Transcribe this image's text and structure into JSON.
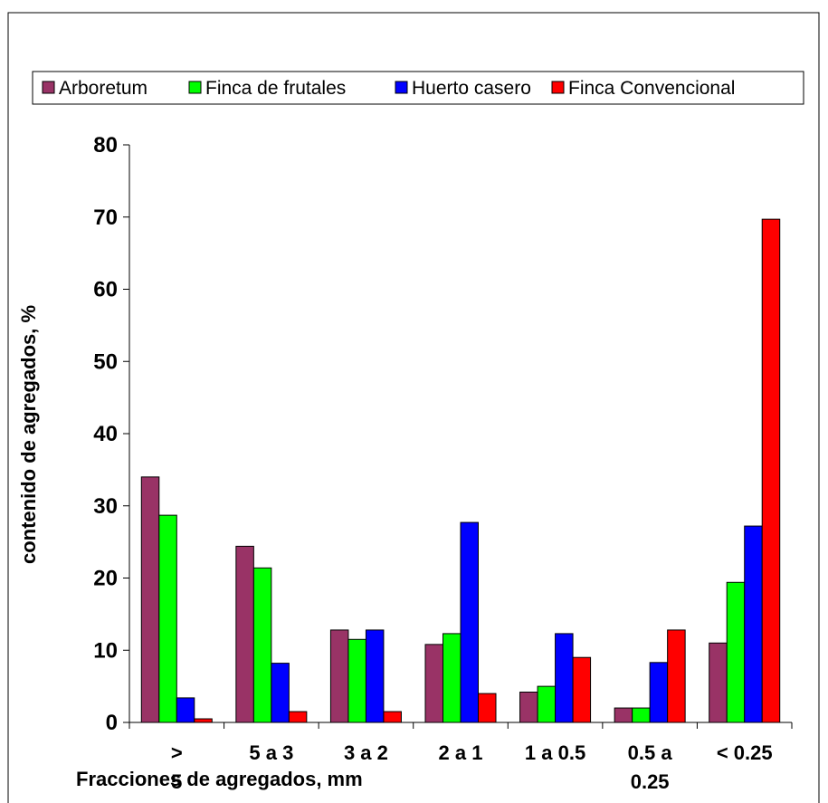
{
  "chart_data": {
    "type": "bar",
    "title": "",
    "xlabel": "Fracciones de agregados, mm",
    "ylabel": "contenido de agregados,  %",
    "categories": [
      [
        ">",
        "5"
      ],
      [
        "5 a 3"
      ],
      [
        "3 a 2"
      ],
      [
        "2 a 1"
      ],
      [
        "1 a 0.5"
      ],
      [
        "0.5 a",
        "0.25"
      ],
      [
        "< 0.25"
      ]
    ],
    "series": [
      {
        "name": "Arboretum",
        "color": "#993366",
        "values": [
          34,
          24.4,
          12.8,
          10.8,
          4.2,
          2.0,
          11.0
        ]
      },
      {
        "name": "Finca de frutales",
        "color": "#00ff00",
        "values": [
          28.7,
          21.4,
          11.5,
          12.3,
          5.0,
          2.0,
          19.4
        ]
      },
      {
        "name": "Huerto casero",
        "color": "#0000ff",
        "values": [
          3.4,
          8.2,
          12.8,
          27.7,
          12.3,
          8.3,
          27.2
        ]
      },
      {
        "name": "Finca Convencional",
        "color": "#ff0000",
        "values": [
          0.5,
          1.5,
          1.5,
          4.0,
          9.0,
          12.8,
          69.7
        ]
      }
    ],
    "ylim": [
      0,
      80
    ],
    "yticks": [
      0,
      10,
      20,
      30,
      40,
      50,
      60,
      70,
      80
    ],
    "grid": false,
    "legend": "top"
  }
}
